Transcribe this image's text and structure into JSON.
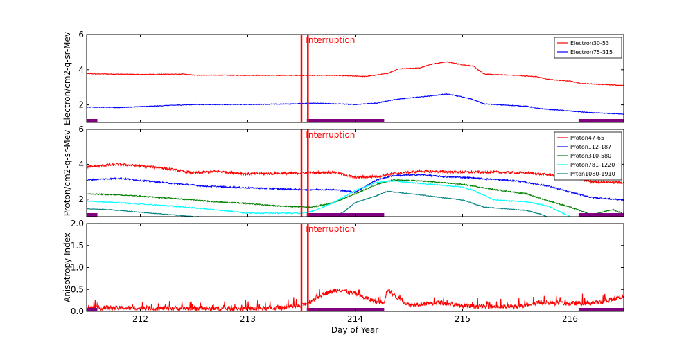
{
  "chart_data": {
    "type": "line",
    "x_range": [
      211.5,
      216.5
    ],
    "xlabel": "Day of Year",
    "x_ticks": [
      212,
      213,
      214,
      215,
      216
    ],
    "x_tick_labels": [
      "212",
      "213",
      "214",
      "215",
      "216"
    ],
    "interruption": {
      "label": "Interruption",
      "lines_x": [
        213.5,
        213.56
      ]
    },
    "gap_bars": [
      [
        211.5,
        211.6
      ],
      [
        213.55,
        214.27
      ],
      [
        216.08,
        216.5
      ]
    ],
    "gap_color": "#800080",
    "panels": [
      {
        "name": "electron",
        "ylabel": "Electron/cm2-q-sr-Mev",
        "ylim": [
          1,
          6
        ],
        "y_ticks": [
          2,
          4,
          6
        ],
        "y_tick_labels": [
          "2",
          "4",
          "6"
        ],
        "legend_position": "top-right",
        "series": [
          {
            "name": "Electron30-53",
            "color": "#ff0000",
            "noise": 0.02,
            "points": [
              [
                211.5,
                3.77
              ],
              [
                212,
                3.73
              ],
              [
                212.4,
                3.75
              ],
              [
                212.5,
                3.69
              ],
              [
                213,
                3.68
              ],
              [
                213.5,
                3.68
              ],
              [
                213.8,
                3.68
              ],
              [
                214.1,
                3.62
              ],
              [
                214.3,
                3.78
              ],
              [
                214.4,
                4.05
              ],
              [
                214.6,
                4.1
              ],
              [
                214.7,
                4.3
              ],
              [
                214.85,
                4.45
              ],
              [
                215,
                4.28
              ],
              [
                215.1,
                4.2
              ],
              [
                215.2,
                3.75
              ],
              [
                215.5,
                3.68
              ],
              [
                215.7,
                3.6
              ],
              [
                215.8,
                3.45
              ],
              [
                216,
                3.35
              ],
              [
                216.1,
                3.22
              ],
              [
                216.5,
                3.1
              ]
            ]
          },
          {
            "name": "Electron75-315",
            "color": "#0000ff",
            "noise": 0.02,
            "points": [
              [
                211.5,
                1.88
              ],
              [
                211.8,
                1.85
              ],
              [
                212.2,
                1.95
              ],
              [
                212.5,
                2.02
              ],
              [
                213,
                2.02
              ],
              [
                213.4,
                2.05
              ],
              [
                213.6,
                2.1
              ],
              [
                214,
                2.02
              ],
              [
                214.2,
                2.1
              ],
              [
                214.35,
                2.28
              ],
              [
                214.5,
                2.4
              ],
              [
                214.7,
                2.5
              ],
              [
                214.85,
                2.62
              ],
              [
                215,
                2.45
              ],
              [
                215.1,
                2.3
              ],
              [
                215.2,
                2.05
              ],
              [
                215.6,
                1.92
              ],
              [
                215.7,
                1.8
              ],
              [
                216,
                1.65
              ],
              [
                216.2,
                1.55
              ],
              [
                216.5,
                1.48
              ]
            ]
          }
        ]
      },
      {
        "name": "proton",
        "ylabel": "Proton/cm2-q-sr-Mev",
        "ylim": [
          1,
          6
        ],
        "y_ticks": [
          2,
          4,
          6
        ],
        "y_tick_labels": [
          "2",
          "4",
          "6"
        ],
        "legend_position": "top-right",
        "series": [
          {
            "name": "Proton47-65",
            "color": "#ff0000",
            "noise": 0.07,
            "points": [
              [
                211.5,
                3.85
              ],
              [
                211.8,
                4
              ],
              [
                212.2,
                3.8
              ],
              [
                212.5,
                3.5
              ],
              [
                212.7,
                3.6
              ],
              [
                213,
                3.45
              ],
              [
                213.5,
                3.5
              ],
              [
                213.8,
                3.55
              ],
              [
                214,
                3.25
              ],
              [
                214.2,
                3.3
              ],
              [
                214.35,
                3.45
              ],
              [
                214.6,
                3.6
              ],
              [
                215,
                3.55
              ],
              [
                215.3,
                3.55
              ],
              [
                215.6,
                3.5
              ],
              [
                216,
                3.3
              ],
              [
                216.2,
                3
              ],
              [
                216.5,
                2.95
              ]
            ]
          },
          {
            "name": "Proton112-187",
            "color": "#0000ff",
            "noise": 0.04,
            "points": [
              [
                211.5,
                3.1
              ],
              [
                211.8,
                3.2
              ],
              [
                212.3,
                2.9
              ],
              [
                212.6,
                2.75
              ],
              [
                213,
                2.65
              ],
              [
                213.5,
                2.55
              ],
              [
                213.8,
                2.55
              ],
              [
                214,
                2.4
              ],
              [
                214.2,
                3.1
              ],
              [
                214.35,
                3.35
              ],
              [
                214.6,
                3.4
              ],
              [
                214.8,
                3.3
              ],
              [
                215,
                3.25
              ],
              [
                215.5,
                3.05
              ],
              [
                215.8,
                2.75
              ],
              [
                216,
                2.4
              ],
              [
                216.2,
                2.1
              ],
              [
                216.5,
                1.95
              ]
            ]
          },
          {
            "name": "Proton310-580",
            "color": "#008000",
            "noise": 0.03,
            "points": [
              [
                211.5,
                2.3
              ],
              [
                211.8,
                2.25
              ],
              [
                212.3,
                2.05
              ],
              [
                212.7,
                1.85
              ],
              [
                213,
                1.75
              ],
              [
                213.3,
                1.6
              ],
              [
                213.6,
                1.55
              ],
              [
                213.8,
                1.8
              ],
              [
                214,
                2.3
              ],
              [
                214.2,
                2.85
              ],
              [
                214.35,
                3.1
              ],
              [
                214.6,
                3.05
              ],
              [
                215,
                2.85
              ],
              [
                215.3,
                2.55
              ],
              [
                215.6,
                2.3
              ],
              [
                215.8,
                1.9
              ],
              [
                216,
                1.55
              ],
              [
                216.2,
                1.1
              ],
              [
                216.4,
                1.4
              ],
              [
                216.5,
                1.15
              ]
            ]
          },
          {
            "name": "Proton781-1220",
            "color": "#00ffff",
            "noise": 0.03,
            "points": [
              [
                211.5,
                1.9
              ],
              [
                211.8,
                1.8
              ],
              [
                212.3,
                1.6
              ],
              [
                212.7,
                1.4
              ],
              [
                213,
                1.2
              ],
              [
                213.5,
                1.2
              ],
              [
                213.6,
                1.3
              ],
              [
                213.8,
                1.8
              ],
              [
                214,
                2.5
              ],
              [
                214.2,
                2.95
              ],
              [
                214.35,
                3.05
              ],
              [
                214.6,
                2.9
              ],
              [
                215,
                2.7
              ],
              [
                215.1,
                2.5
              ],
              [
                215.3,
                1.95
              ],
              [
                215.6,
                1.85
              ],
              [
                215.8,
                1.6
              ],
              [
                216,
                1
              ]
            ]
          },
          {
            "name": "Prton1080-1910",
            "color": "#008080",
            "noise": 0.02,
            "points": [
              [
                211.5,
                1.45
              ],
              [
                211.7,
                1.4
              ],
              [
                212,
                1.25
              ],
              [
                212.5,
                1.0
              ],
              [
                212.7,
                0.95
              ],
              [
                213.8,
                0.95
              ],
              [
                213.9,
                1.3
              ],
              [
                214,
                1.8
              ],
              [
                214.2,
                2.2
              ],
              [
                214.3,
                2.45
              ],
              [
                214.6,
                2.25
              ],
              [
                215,
                1.95
              ],
              [
                215.2,
                1.55
              ],
              [
                215.6,
                1.35
              ],
              [
                215.75,
                1.1
              ],
              [
                215.8,
                0.95
              ]
            ]
          }
        ]
      },
      {
        "name": "anisotropy",
        "ylabel": "Anisotropy Index",
        "ylim": [
          0,
          2
        ],
        "y_ticks": [
          0,
          0.5,
          1,
          1.5,
          2
        ],
        "y_tick_labels": [
          "0.0",
          "0.5",
          "1.0",
          "1.5",
          "2.0"
        ],
        "series": [
          {
            "name": "Anisotropy Index",
            "color": "#ff0000",
            "noise": 0.05,
            "points": [
              [
                211.5,
                0.08
              ],
              [
                213,
                0.06
              ],
              [
                213.3,
                0.08
              ],
              [
                213.5,
                0.12
              ],
              [
                213.6,
                0.25
              ],
              [
                213.7,
                0.4
              ],
              [
                213.85,
                0.5
              ],
              [
                214,
                0.4
              ],
              [
                214.1,
                0.3
              ],
              [
                214.2,
                0.22
              ],
              [
                214.27,
                0.22
              ],
              [
                214.3,
                0.5
              ],
              [
                214.4,
                0.3
              ],
              [
                214.5,
                0.15
              ],
              [
                214.8,
                0.2
              ],
              [
                215,
                0.12
              ],
              [
                215.5,
                0.1
              ],
              [
                215.7,
                0.2
              ],
              [
                216,
                0.18
              ],
              [
                216.3,
                0.2
              ],
              [
                216.5,
                0.35
              ]
            ]
          }
        ]
      }
    ]
  }
}
